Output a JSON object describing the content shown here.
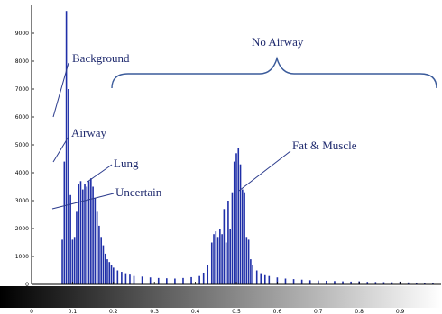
{
  "chart_data": {
    "type": "bar",
    "title": "",
    "xlabel": "",
    "ylabel": "",
    "xlim": [
      0,
      1
    ],
    "ylim": [
      0,
      10000
    ],
    "grid": false,
    "x_ticks": [
      "0",
      "0.1",
      "0.2",
      "0.3",
      "0.4",
      "0.5",
      "0.6",
      "0.7",
      "0.8",
      "0.9"
    ],
    "y_ticks": [
      "0",
      "1000",
      "2000",
      "3000",
      "4000",
      "5000",
      "6000",
      "7000",
      "8000",
      "9000"
    ],
    "colors": {
      "bars": "#1f2fa8",
      "annotation_text": "#1f2a6e",
      "pointer": "#2a3a8c",
      "brace": "#3a5a9a"
    },
    "colorbar": {
      "from": "#000000",
      "to": "#ffffff"
    },
    "series": [
      {
        "x": [
          0.075,
          0.08,
          0.085,
          0.09,
          0.095,
          0.1,
          0.105,
          0.11,
          0.115,
          0.12,
          0.125,
          0.13,
          0.135,
          0.14,
          0.145,
          0.15,
          0.155,
          0.16,
          0.165,
          0.17,
          0.175,
          0.18,
          0.185,
          0.19,
          0.195,
          0.2,
          0.21,
          0.22,
          0.23,
          0.24,
          0.25,
          0.27,
          0.29,
          0.31,
          0.33,
          0.35,
          0.37,
          0.39,
          0.41,
          0.42,
          0.43,
          0.44,
          0.445,
          0.45,
          0.455,
          0.46,
          0.465,
          0.47,
          0.475,
          0.48,
          0.485,
          0.49,
          0.495,
          0.5,
          0.505,
          0.51,
          0.515,
          0.52,
          0.525,
          0.53,
          0.535,
          0.54,
          0.55,
          0.56,
          0.57,
          0.58,
          0.6,
          0.62,
          0.64,
          0.66,
          0.68,
          0.7,
          0.72,
          0.74,
          0.76,
          0.78,
          0.8,
          0.82,
          0.84,
          0.86,
          0.88,
          0.9,
          0.92,
          0.94,
          0.96,
          0.98
        ],
        "values": [
          1600,
          4400,
          9800,
          7000,
          3200,
          1600,
          1700,
          2600,
          3600,
          3700,
          3400,
          3600,
          3500,
          3700,
          3800,
          3500,
          3100,
          2600,
          2100,
          1700,
          1400,
          1100,
          900,
          800,
          700,
          600,
          500,
          450,
          400,
          350,
          300,
          280,
          250,
          230,
          220,
          210,
          230,
          260,
          300,
          420,
          700,
          1500,
          1800,
          1900,
          1700,
          2000,
          1800,
          2700,
          1500,
          3000,
          2000,
          3300,
          4400,
          4700,
          4900,
          4300,
          3400,
          3300,
          1700,
          1600,
          900,
          700,
          500,
          400,
          330,
          300,
          250,
          210,
          190,
          170,
          150,
          140,
          130,
          120,
          110,
          100,
          110,
          90,
          85,
          80,
          75,
          100,
          70,
          65,
          60,
          55
        ]
      }
    ],
    "annotations": [
      {
        "text": "Background"
      },
      {
        "text": "Airway"
      },
      {
        "text": "Lung"
      },
      {
        "text": "Uncertain"
      },
      {
        "text": "Fat & Muscle"
      },
      {
        "text": "No Airway"
      }
    ]
  }
}
